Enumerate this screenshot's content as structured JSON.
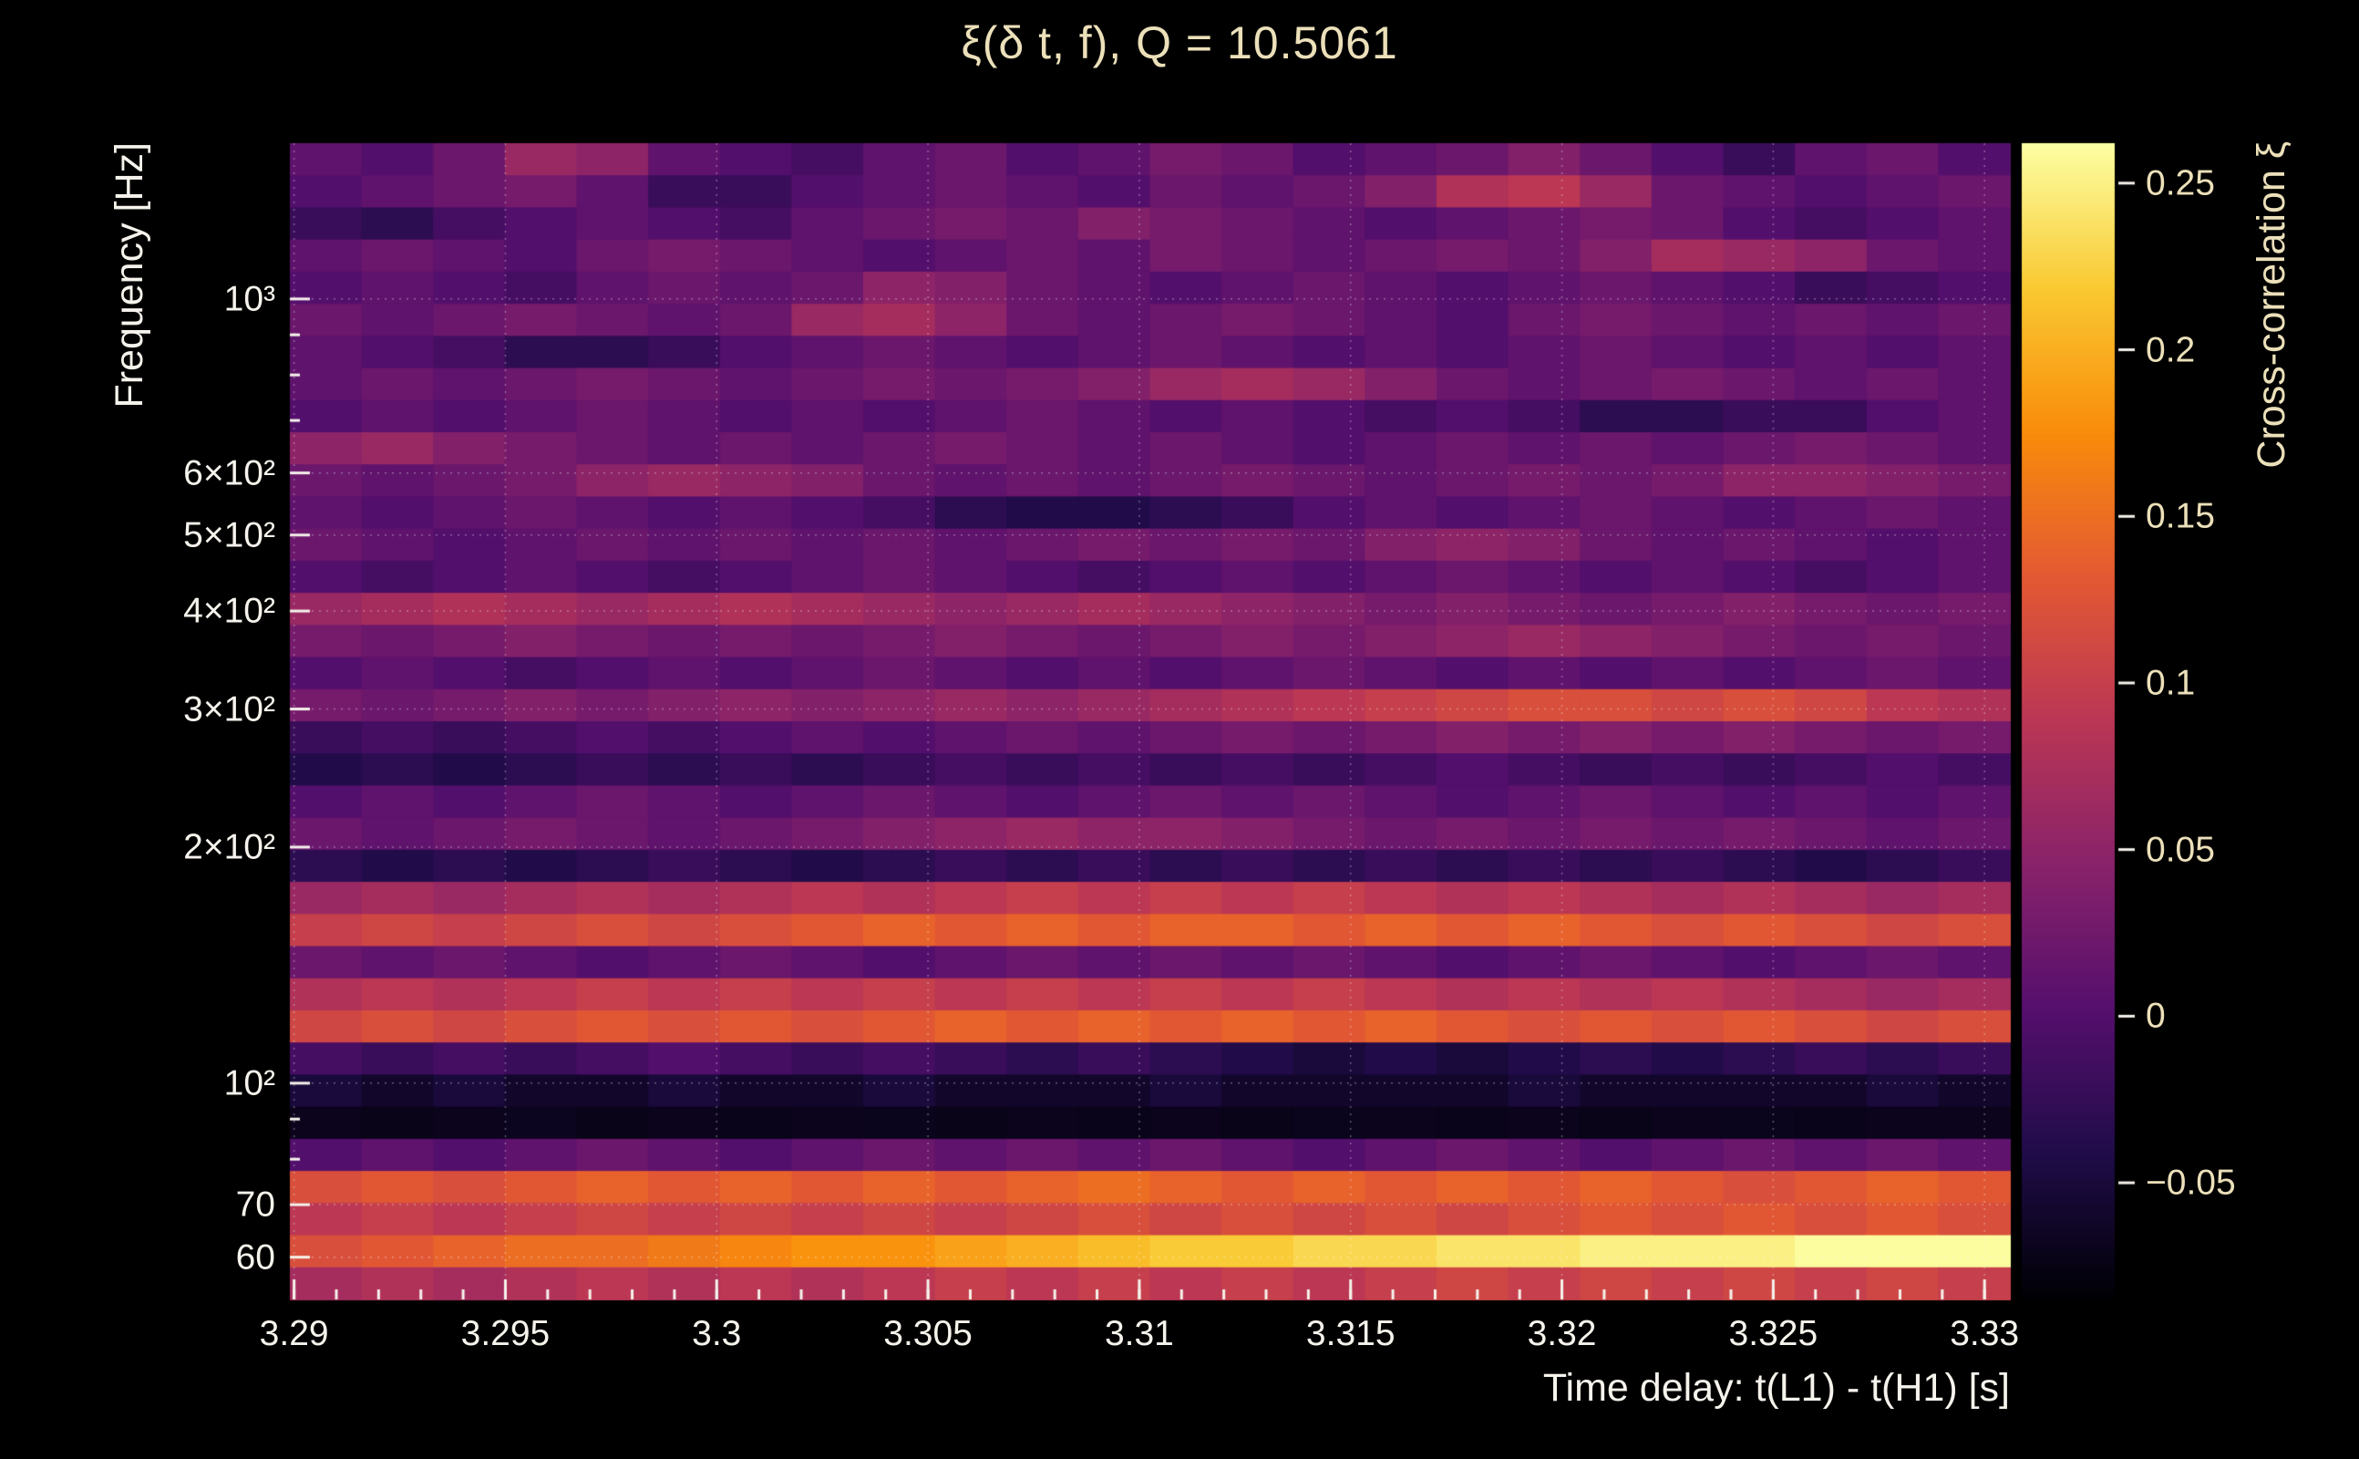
{
  "title": "ξ(δ t, f), Q = 10.5061",
  "axes": {
    "x_label": "Time delay: t(L1) - t(H1) [s]",
    "y_label": "Frequency [Hz]",
    "colorbar_label": "Cross-correlation ξ",
    "x_tick_labels": [
      "3.29",
      "3.295",
      "3.3",
      "3.305",
      "3.31",
      "3.315",
      "3.32",
      "3.325",
      "3.33"
    ],
    "y_tick_labels": [
      "10³",
      "6×10²",
      "5×10²",
      "4×10²",
      "3×10²",
      "2×10²",
      "10²",
      "70",
      "60"
    ],
    "colorbar_tick_labels": [
      "0.25",
      "0.2",
      "0.15",
      "0.1",
      "0.05",
      "0",
      "−0.05"
    ]
  },
  "colors": {
    "background": "#000000",
    "text_primary": "#f6f3ec",
    "text_accent": "#ece0ba",
    "grid": "rgba(255,255,255,0.35)",
    "tick": "#f6f3ec"
  },
  "chart_data": {
    "type": "heatmap",
    "title": "ξ(δ t, f), Q = 10.5061",
    "xlabel": "Time delay: t(L1) - t(H1) [s]",
    "ylabel": "Frequency [Hz]",
    "zlabel": "Cross-correlation ξ",
    "colormap": "inferno",
    "x_range": [
      3.2899,
      3.3306
    ],
    "x_ticks": [
      3.29,
      3.295,
      3.3,
      3.305,
      3.31,
      3.315,
      3.32,
      3.325,
      3.33
    ],
    "x_minor_step": 0.001,
    "y_scale": "log",
    "y_range_hz": [
      53,
      1580
    ],
    "y_ticks_hz": [
      1000,
      600,
      500,
      400,
      300,
      200,
      100,
      70,
      60
    ],
    "y_minor_ticks_hz": [
      900,
      800,
      700,
      90,
      80
    ],
    "value_range": [
      -0.085,
      0.262
    ],
    "colorbar_ticks": [
      0.25,
      0.2,
      0.15,
      0.1,
      0.05,
      0,
      -0.05
    ],
    "n_rows": 36,
    "n_cols": 24,
    "row_order": "top-to-bottom (high frequency to low frequency), columns left-to-right in time delay",
    "values": [
      [
        0.01,
        0.0,
        0.02,
        0.06,
        0.05,
        0.01,
        0.0,
        -0.01,
        0.01,
        0.02,
        0.0,
        0.01,
        0.03,
        0.02,
        0.0,
        0.01,
        0.02,
        0.04,
        0.02,
        0.0,
        -0.02,
        0.01,
        0.02,
        0.0
      ],
      [
        0.0,
        0.01,
        0.02,
        0.03,
        0.01,
        -0.02,
        -0.02,
        0.0,
        0.01,
        0.02,
        0.01,
        0.0,
        0.02,
        0.01,
        0.02,
        0.04,
        0.08,
        0.09,
        0.06,
        0.02,
        0.01,
        0.0,
        0.01,
        0.02
      ],
      [
        -0.02,
        -0.03,
        -0.01,
        0.0,
        0.01,
        0.0,
        -0.01,
        0.01,
        0.02,
        0.03,
        0.02,
        0.04,
        0.03,
        0.02,
        0.01,
        0.0,
        0.01,
        0.02,
        0.03,
        0.02,
        0.0,
        -0.01,
        0.0,
        0.01
      ],
      [
        0.01,
        0.02,
        0.01,
        0.0,
        0.02,
        0.03,
        0.02,
        0.01,
        0.0,
        0.01,
        0.02,
        0.01,
        0.03,
        0.02,
        0.01,
        0.02,
        0.03,
        0.02,
        0.04,
        0.07,
        0.06,
        0.05,
        0.02,
        0.01
      ],
      [
        0.0,
        0.01,
        0.0,
        -0.01,
        0.01,
        0.02,
        0.01,
        0.02,
        0.05,
        0.04,
        0.02,
        0.01,
        0.0,
        0.01,
        0.02,
        0.01,
        0.0,
        0.01,
        0.02,
        0.01,
        0.0,
        -0.02,
        -0.01,
        0.0
      ],
      [
        0.02,
        0.01,
        0.02,
        0.03,
        0.02,
        0.01,
        0.02,
        0.06,
        0.07,
        0.05,
        0.02,
        0.01,
        0.02,
        0.03,
        0.02,
        0.01,
        0.0,
        0.02,
        0.03,
        0.02,
        0.01,
        0.02,
        0.01,
        0.02
      ],
      [
        0.01,
        0.0,
        -0.01,
        -0.03,
        -0.03,
        -0.02,
        0.0,
        0.01,
        0.02,
        0.01,
        0.0,
        0.01,
        0.02,
        0.01,
        0.0,
        0.01,
        0.0,
        0.01,
        0.02,
        0.01,
        0.0,
        0.01,
        0.0,
        0.01
      ],
      [
        0.01,
        0.02,
        0.01,
        0.02,
        0.03,
        0.02,
        0.01,
        0.02,
        0.03,
        0.02,
        0.03,
        0.04,
        0.06,
        0.07,
        0.06,
        0.04,
        0.02,
        0.01,
        0.02,
        0.03,
        0.02,
        0.01,
        0.02,
        0.01
      ],
      [
        0.0,
        0.01,
        0.0,
        0.01,
        0.02,
        0.01,
        0.0,
        0.01,
        0.0,
        0.01,
        0.02,
        0.01,
        0.0,
        0.01,
        0.0,
        -0.01,
        0.0,
        -0.01,
        -0.03,
        -0.03,
        -0.02,
        -0.02,
        0.0,
        0.01
      ],
      [
        0.05,
        0.06,
        0.04,
        0.03,
        0.02,
        0.01,
        0.02,
        0.01,
        0.02,
        0.03,
        0.02,
        0.01,
        0.02,
        0.01,
        0.0,
        0.01,
        0.02,
        0.01,
        0.02,
        0.01,
        0.02,
        0.03,
        0.02,
        0.01
      ],
      [
        0.02,
        0.01,
        0.02,
        0.03,
        0.05,
        0.06,
        0.05,
        0.04,
        0.02,
        0.01,
        0.02,
        0.01,
        0.02,
        0.03,
        0.02,
        0.01,
        0.02,
        0.03,
        0.02,
        0.03,
        0.05,
        0.05,
        0.04,
        0.03
      ],
      [
        0.01,
        0.0,
        0.01,
        0.02,
        0.01,
        0.0,
        0.01,
        0.0,
        -0.01,
        -0.03,
        -0.04,
        -0.04,
        -0.03,
        -0.02,
        0.0,
        0.01,
        0.0,
        0.01,
        0.02,
        0.01,
        0.0,
        0.01,
        0.02,
        0.01
      ],
      [
        0.02,
        0.01,
        0.0,
        0.01,
        0.02,
        0.01,
        0.02,
        0.01,
        0.02,
        0.01,
        0.02,
        0.03,
        0.02,
        0.03,
        0.02,
        0.04,
        0.05,
        0.04,
        0.02,
        0.01,
        0.02,
        0.01,
        0.0,
        0.01
      ],
      [
        0.0,
        -0.01,
        0.0,
        0.01,
        0.0,
        -0.01,
        0.0,
        0.01,
        0.02,
        0.01,
        0.0,
        -0.01,
        0.0,
        0.01,
        0.0,
        0.01,
        0.02,
        0.01,
        0.0,
        0.01,
        0.0,
        -0.01,
        0.0,
        0.01
      ],
      [
        0.06,
        0.07,
        0.08,
        0.07,
        0.06,
        0.07,
        0.08,
        0.07,
        0.06,
        0.05,
        0.06,
        0.07,
        0.06,
        0.05,
        0.04,
        0.03,
        0.04,
        0.03,
        0.02,
        0.03,
        0.04,
        0.03,
        0.02,
        0.03
      ],
      [
        0.03,
        0.02,
        0.03,
        0.04,
        0.03,
        0.02,
        0.03,
        0.02,
        0.03,
        0.04,
        0.03,
        0.02,
        0.03,
        0.04,
        0.03,
        0.04,
        0.05,
        0.06,
        0.05,
        0.04,
        0.03,
        0.02,
        0.03,
        0.02
      ],
      [
        0.0,
        0.01,
        0.0,
        -0.01,
        0.0,
        0.01,
        0.0,
        0.01,
        0.02,
        0.01,
        0.0,
        0.01,
        0.0,
        0.01,
        0.02,
        0.01,
        0.0,
        0.01,
        0.0,
        0.01,
        0.0,
        0.01,
        0.02,
        0.01
      ],
      [
        0.03,
        0.02,
        0.03,
        0.04,
        0.03,
        0.04,
        0.05,
        0.04,
        0.05,
        0.06,
        0.05,
        0.06,
        0.07,
        0.08,
        0.09,
        0.1,
        0.11,
        0.12,
        0.12,
        0.11,
        0.12,
        0.11,
        0.09,
        0.08
      ],
      [
        -0.02,
        -0.01,
        -0.02,
        -0.01,
        0.0,
        -0.01,
        0.0,
        0.01,
        0.0,
        0.01,
        0.02,
        0.01,
        0.02,
        0.03,
        0.02,
        0.03,
        0.04,
        0.03,
        0.04,
        0.03,
        0.04,
        0.03,
        0.02,
        0.03
      ],
      [
        -0.04,
        -0.03,
        -0.04,
        -0.03,
        -0.02,
        -0.03,
        -0.02,
        -0.03,
        -0.02,
        -0.01,
        -0.02,
        -0.01,
        -0.02,
        -0.01,
        -0.02,
        -0.01,
        0.0,
        -0.01,
        -0.02,
        -0.01,
        -0.02,
        -0.01,
        0.0,
        -0.01
      ],
      [
        0.0,
        0.01,
        0.0,
        0.01,
        0.02,
        0.01,
        0.0,
        0.01,
        0.02,
        0.01,
        0.0,
        0.01,
        0.02,
        0.01,
        0.02,
        0.01,
        0.0,
        0.01,
        0.02,
        0.01,
        0.0,
        0.01,
        0.0,
        0.01
      ],
      [
        0.02,
        0.01,
        0.02,
        0.03,
        0.02,
        0.01,
        0.02,
        0.03,
        0.04,
        0.05,
        0.06,
        0.05,
        0.05,
        0.04,
        0.03,
        0.02,
        0.03,
        0.02,
        0.03,
        0.02,
        0.03,
        0.02,
        0.01,
        0.02
      ],
      [
        -0.03,
        -0.04,
        -0.03,
        -0.04,
        -0.03,
        -0.02,
        -0.03,
        -0.04,
        -0.03,
        -0.02,
        -0.03,
        -0.02,
        -0.03,
        -0.02,
        -0.03,
        -0.02,
        -0.03,
        -0.02,
        -0.03,
        -0.02,
        -0.03,
        -0.04,
        -0.03,
        -0.02
      ],
      [
        0.06,
        0.07,
        0.06,
        0.07,
        0.08,
        0.07,
        0.08,
        0.09,
        0.08,
        0.09,
        0.1,
        0.09,
        0.1,
        0.09,
        0.1,
        0.09,
        0.08,
        0.09,
        0.08,
        0.07,
        0.08,
        0.07,
        0.06,
        0.07
      ],
      [
        0.1,
        0.11,
        0.1,
        0.11,
        0.12,
        0.11,
        0.12,
        0.13,
        0.14,
        0.13,
        0.14,
        0.13,
        0.14,
        0.14,
        0.13,
        0.14,
        0.13,
        0.14,
        0.13,
        0.12,
        0.13,
        0.12,
        0.11,
        0.12
      ],
      [
        0.02,
        0.01,
        0.02,
        0.01,
        0.0,
        0.01,
        0.02,
        0.01,
        0.0,
        0.01,
        0.02,
        0.01,
        0.02,
        0.01,
        0.02,
        0.01,
        0.0,
        0.01,
        0.02,
        0.01,
        0.0,
        0.01,
        0.02,
        0.01
      ],
      [
        0.08,
        0.09,
        0.08,
        0.09,
        0.1,
        0.09,
        0.1,
        0.09,
        0.1,
        0.09,
        0.1,
        0.09,
        0.1,
        0.09,
        0.1,
        0.09,
        0.08,
        0.09,
        0.08,
        0.09,
        0.08,
        0.07,
        0.06,
        0.07
      ],
      [
        0.11,
        0.12,
        0.11,
        0.12,
        0.13,
        0.12,
        0.13,
        0.12,
        0.13,
        0.14,
        0.13,
        0.14,
        0.13,
        0.14,
        0.13,
        0.14,
        0.13,
        0.12,
        0.13,
        0.12,
        0.13,
        0.12,
        0.11,
        0.12
      ],
      [
        -0.01,
        -0.02,
        -0.01,
        -0.02,
        -0.01,
        0.0,
        -0.01,
        -0.02,
        -0.01,
        -0.02,
        -0.03,
        -0.02,
        -0.03,
        -0.04,
        -0.05,
        -0.04,
        -0.05,
        -0.04,
        -0.03,
        -0.04,
        -0.03,
        -0.02,
        -0.03,
        -0.02
      ],
      [
        -0.05,
        -0.06,
        -0.05,
        -0.06,
        -0.06,
        -0.05,
        -0.06,
        -0.06,
        -0.05,
        -0.06,
        -0.06,
        -0.06,
        -0.05,
        -0.06,
        -0.06,
        -0.06,
        -0.06,
        -0.05,
        -0.06,
        -0.06,
        -0.06,
        -0.06,
        -0.05,
        -0.06
      ],
      [
        -0.07,
        -0.072,
        -0.07,
        -0.068,
        -0.072,
        -0.07,
        -0.071,
        -0.07,
        -0.069,
        -0.072,
        -0.07,
        -0.071,
        -0.07,
        -0.072,
        -0.069,
        -0.07,
        -0.071,
        -0.07,
        -0.072,
        -0.07,
        -0.069,
        -0.071,
        -0.07,
        -0.07
      ],
      [
        0.0,
        0.01,
        0.0,
        0.01,
        0.02,
        0.01,
        0.0,
        0.01,
        0.02,
        0.01,
        0.02,
        0.01,
        0.02,
        0.01,
        0.0,
        0.01,
        0.02,
        0.01,
        0.0,
        0.01,
        0.02,
        0.01,
        0.02,
        0.01
      ],
      [
        0.12,
        0.13,
        0.12,
        0.13,
        0.14,
        0.13,
        0.14,
        0.13,
        0.14,
        0.13,
        0.14,
        0.15,
        0.14,
        0.13,
        0.14,
        0.13,
        0.14,
        0.13,
        0.14,
        0.13,
        0.12,
        0.13,
        0.14,
        0.13
      ],
      [
        0.09,
        0.1,
        0.09,
        0.1,
        0.11,
        0.1,
        0.11,
        0.1,
        0.11,
        0.1,
        0.11,
        0.12,
        0.11,
        0.12,
        0.11,
        0.12,
        0.11,
        0.12,
        0.13,
        0.12,
        0.13,
        0.12,
        0.13,
        0.12
      ],
      [
        0.12,
        0.13,
        0.14,
        0.15,
        0.15,
        0.16,
        0.17,
        0.18,
        0.18,
        0.19,
        0.2,
        0.21,
        0.22,
        0.22,
        0.23,
        0.23,
        0.24,
        0.24,
        0.25,
        0.25,
        0.25,
        0.26,
        0.26,
        0.26
      ],
      [
        0.07,
        0.08,
        0.07,
        0.08,
        0.09,
        0.08,
        0.09,
        0.08,
        0.09,
        0.1,
        0.09,
        0.1,
        0.09,
        0.1,
        0.09,
        0.1,
        0.11,
        0.1,
        0.11,
        0.1,
        0.11,
        0.1,
        0.11,
        0.1
      ]
    ]
  }
}
